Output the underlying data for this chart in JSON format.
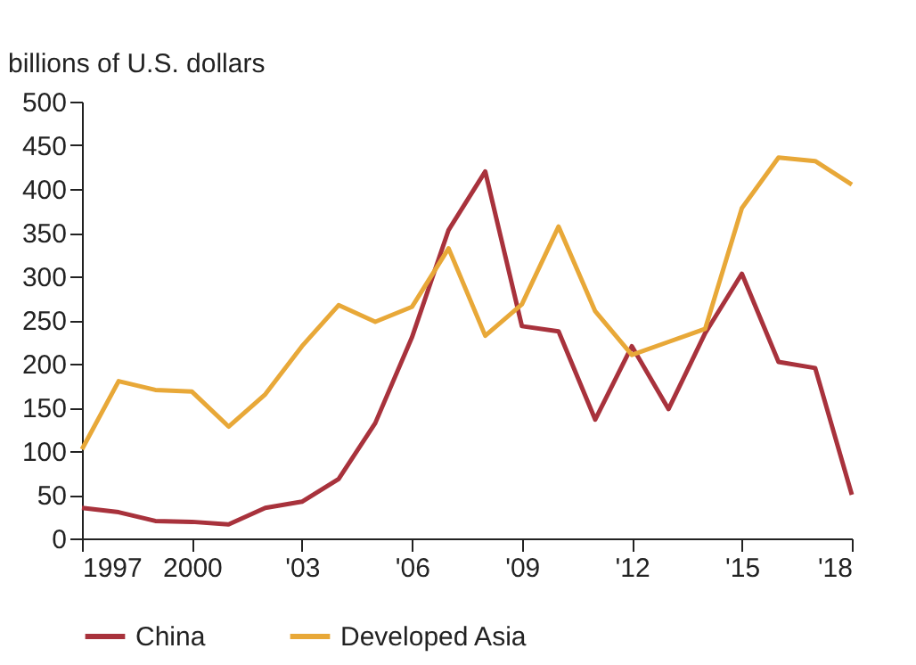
{
  "chart_data": {
    "type": "line",
    "ylabel": "billions of U.S. dollars",
    "x": [
      1997,
      1998,
      1999,
      2000,
      2001,
      2002,
      2003,
      2004,
      2005,
      2006,
      2007,
      2008,
      2009,
      2010,
      2011,
      2012,
      2013,
      2014,
      2015,
      2016,
      2017,
      2018
    ],
    "series": [
      {
        "name": "China",
        "color": "#a8323c",
        "values": [
          35,
          30,
          20,
          19,
          16,
          35,
          42,
          68,
          132,
          230,
          353,
          420,
          243,
          237,
          136,
          220,
          148,
          235,
          303,
          202,
          195,
          50
        ]
      },
      {
        "name": "Developed Asia",
        "color": "#e8a838",
        "values": [
          102,
          180,
          170,
          168,
          128,
          165,
          220,
          267,
          248,
          265,
          332,
          232,
          268,
          357,
          260,
          210,
          225,
          240,
          378,
          436,
          432,
          405
        ]
      }
    ],
    "xlim": [
      1997,
      2018
    ],
    "xticks": [
      1997,
      2000,
      {
        "value": 2003,
        "label": "'03"
      },
      {
        "value": 2006,
        "label": "'06"
      },
      {
        "value": 2009,
        "label": "'09"
      },
      {
        "value": 2012,
        "label": "'12"
      },
      {
        "value": 2015,
        "label": "'15"
      },
      {
        "value": 2018,
        "label": "'18"
      }
    ],
    "ylim": [
      0,
      500
    ],
    "yticks": [
      0,
      50,
      100,
      150,
      200,
      250,
      300,
      350,
      400,
      450,
      500
    ],
    "grid": false,
    "legend": "bottom",
    "marker": "none",
    "line_style": "solid"
  }
}
